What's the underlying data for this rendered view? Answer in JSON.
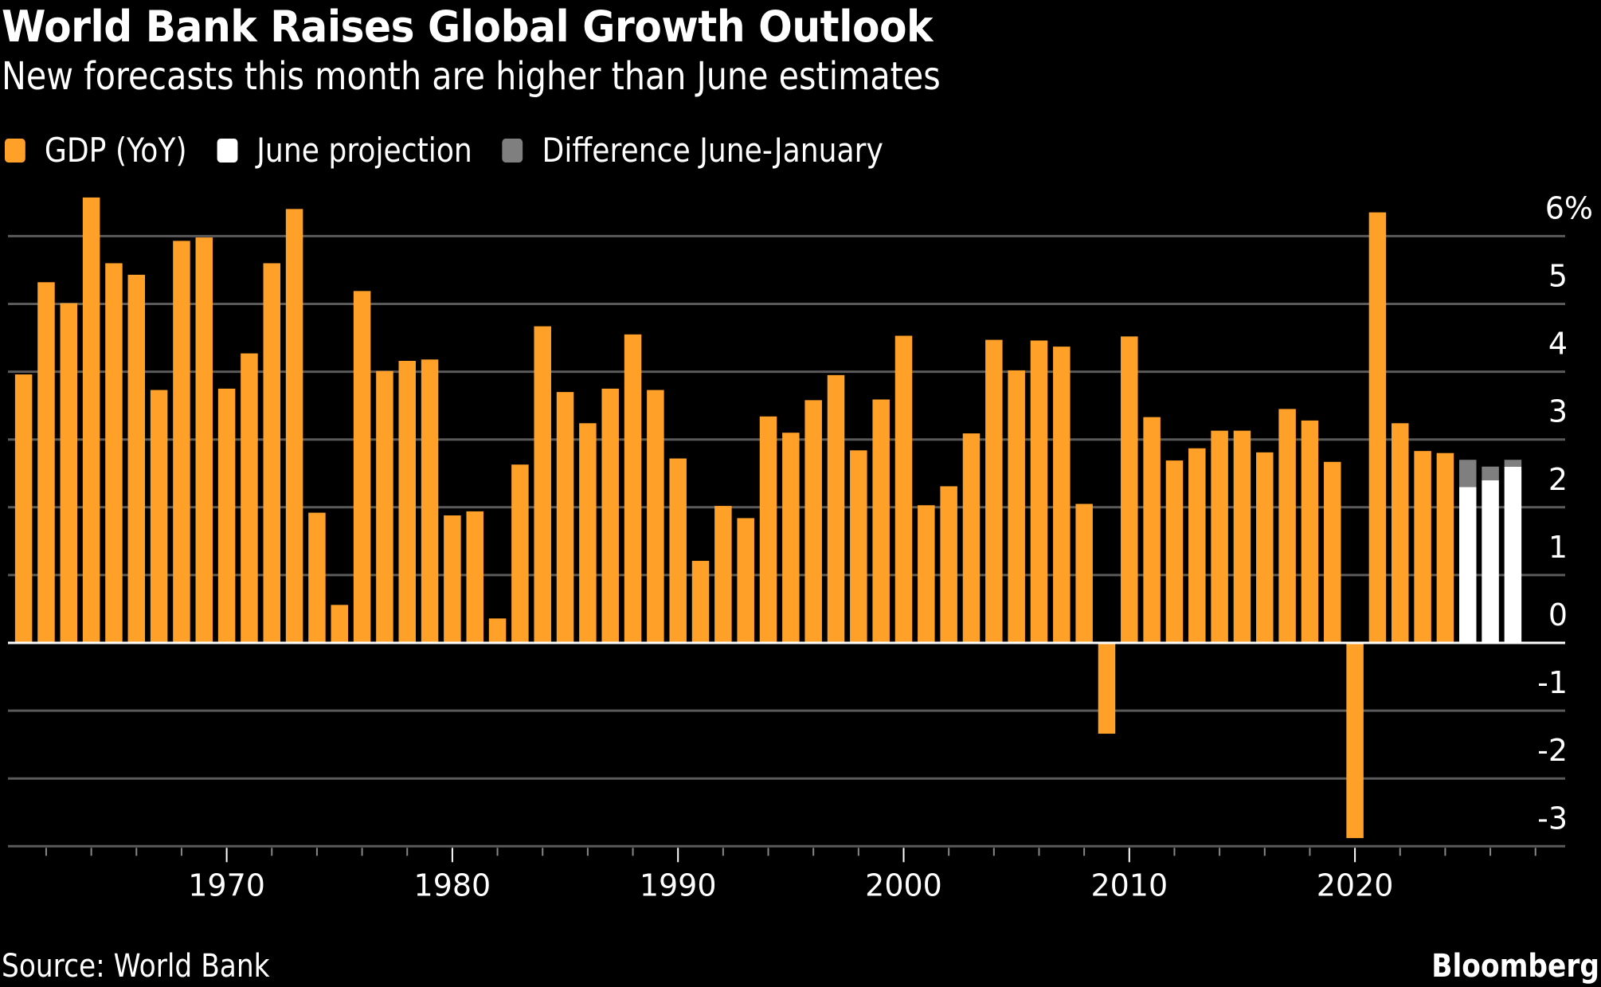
{
  "header": {
    "title": "World Bank Raises Global Growth Outlook",
    "subtitle": "New forecasts this month are higher than June estimates"
  },
  "legend": [
    {
      "label": "GDP (YoY)",
      "color": "#FFA028"
    },
    {
      "label": "June projection",
      "color": "#FFFFFF"
    },
    {
      "label": "Difference June-January",
      "color": "#7F7F7F"
    }
  ],
  "footer": {
    "source": "Source: World Bank",
    "brand": "Bloomberg"
  },
  "chart_data": {
    "type": "bar",
    "title": "World Bank Raises Global Growth Outlook",
    "subtitle": "New forecasts this month are higher than June estimates",
    "xlabel": "",
    "ylabel": "",
    "ylim": [
      -3,
      6
    ],
    "yticks": [
      6,
      5,
      4,
      3,
      2,
      1,
      0,
      -1,
      -2,
      -3
    ],
    "ytick_labels": [
      "6%",
      "5",
      "4",
      "3",
      "2",
      "1",
      "0",
      "-1",
      "-2",
      "-3"
    ],
    "xticks_major": [
      1970,
      1980,
      1990,
      2000,
      2010,
      2020
    ],
    "xtick_labels": [
      "1970",
      "1980",
      "1990",
      "2000",
      "2010",
      "2020"
    ],
    "grid": true,
    "legend_position": "top-left",
    "axis_side": "right",
    "colors": {
      "gdp": "#FFA028",
      "june": "#FFFFFF",
      "diff": "#7F7F7F",
      "grid": "#5A5A5A"
    },
    "series": [
      {
        "name": "GDP (YoY)",
        "x": [
          1961,
          1962,
          1963,
          1964,
          1965,
          1966,
          1967,
          1968,
          1969,
          1970,
          1971,
          1972,
          1973,
          1974,
          1975,
          1976,
          1977,
          1978,
          1979,
          1980,
          1981,
          1982,
          1983,
          1984,
          1985,
          1986,
          1987,
          1988,
          1989,
          1990,
          1991,
          1992,
          1993,
          1994,
          1995,
          1996,
          1997,
          1998,
          1999,
          2000,
          2001,
          2002,
          2003,
          2004,
          2005,
          2006,
          2007,
          2008,
          2009,
          2010,
          2011,
          2012,
          2013,
          2014,
          2015,
          2016,
          2017,
          2018,
          2019,
          2020,
          2021,
          2022,
          2023,
          2024
        ],
        "values": [
          3.96,
          5.32,
          5.01,
          6.57,
          5.6,
          5.43,
          3.73,
          5.93,
          5.98,
          3.75,
          4.27,
          5.6,
          6.4,
          1.92,
          0.56,
          5.19,
          4.01,
          4.16,
          4.18,
          1.88,
          1.94,
          0.36,
          2.63,
          4.67,
          3.7,
          3.24,
          3.75,
          4.55,
          3.73,
          2.72,
          1.21,
          2.02,
          1.84,
          3.34,
          3.1,
          3.58,
          3.95,
          2.84,
          3.59,
          4.53,
          2.03,
          2.31,
          3.09,
          4.47,
          4.02,
          4.46,
          4.37,
          2.05,
          -1.34,
          4.52,
          3.33,
          2.69,
          2.87,
          3.13,
          3.13,
          2.81,
          3.45,
          3.28,
          2.67,
          -2.88,
          6.35,
          3.24,
          2.83,
          2.8
        ]
      },
      {
        "name": "June projection",
        "x": [
          2025,
          2026,
          2027
        ],
        "values": [
          2.3,
          2.4,
          2.6
        ]
      },
      {
        "name": "Difference June-January",
        "x": [
          2025,
          2026,
          2027
        ],
        "values": [
          0.4,
          0.2,
          0.1
        ]
      }
    ]
  }
}
